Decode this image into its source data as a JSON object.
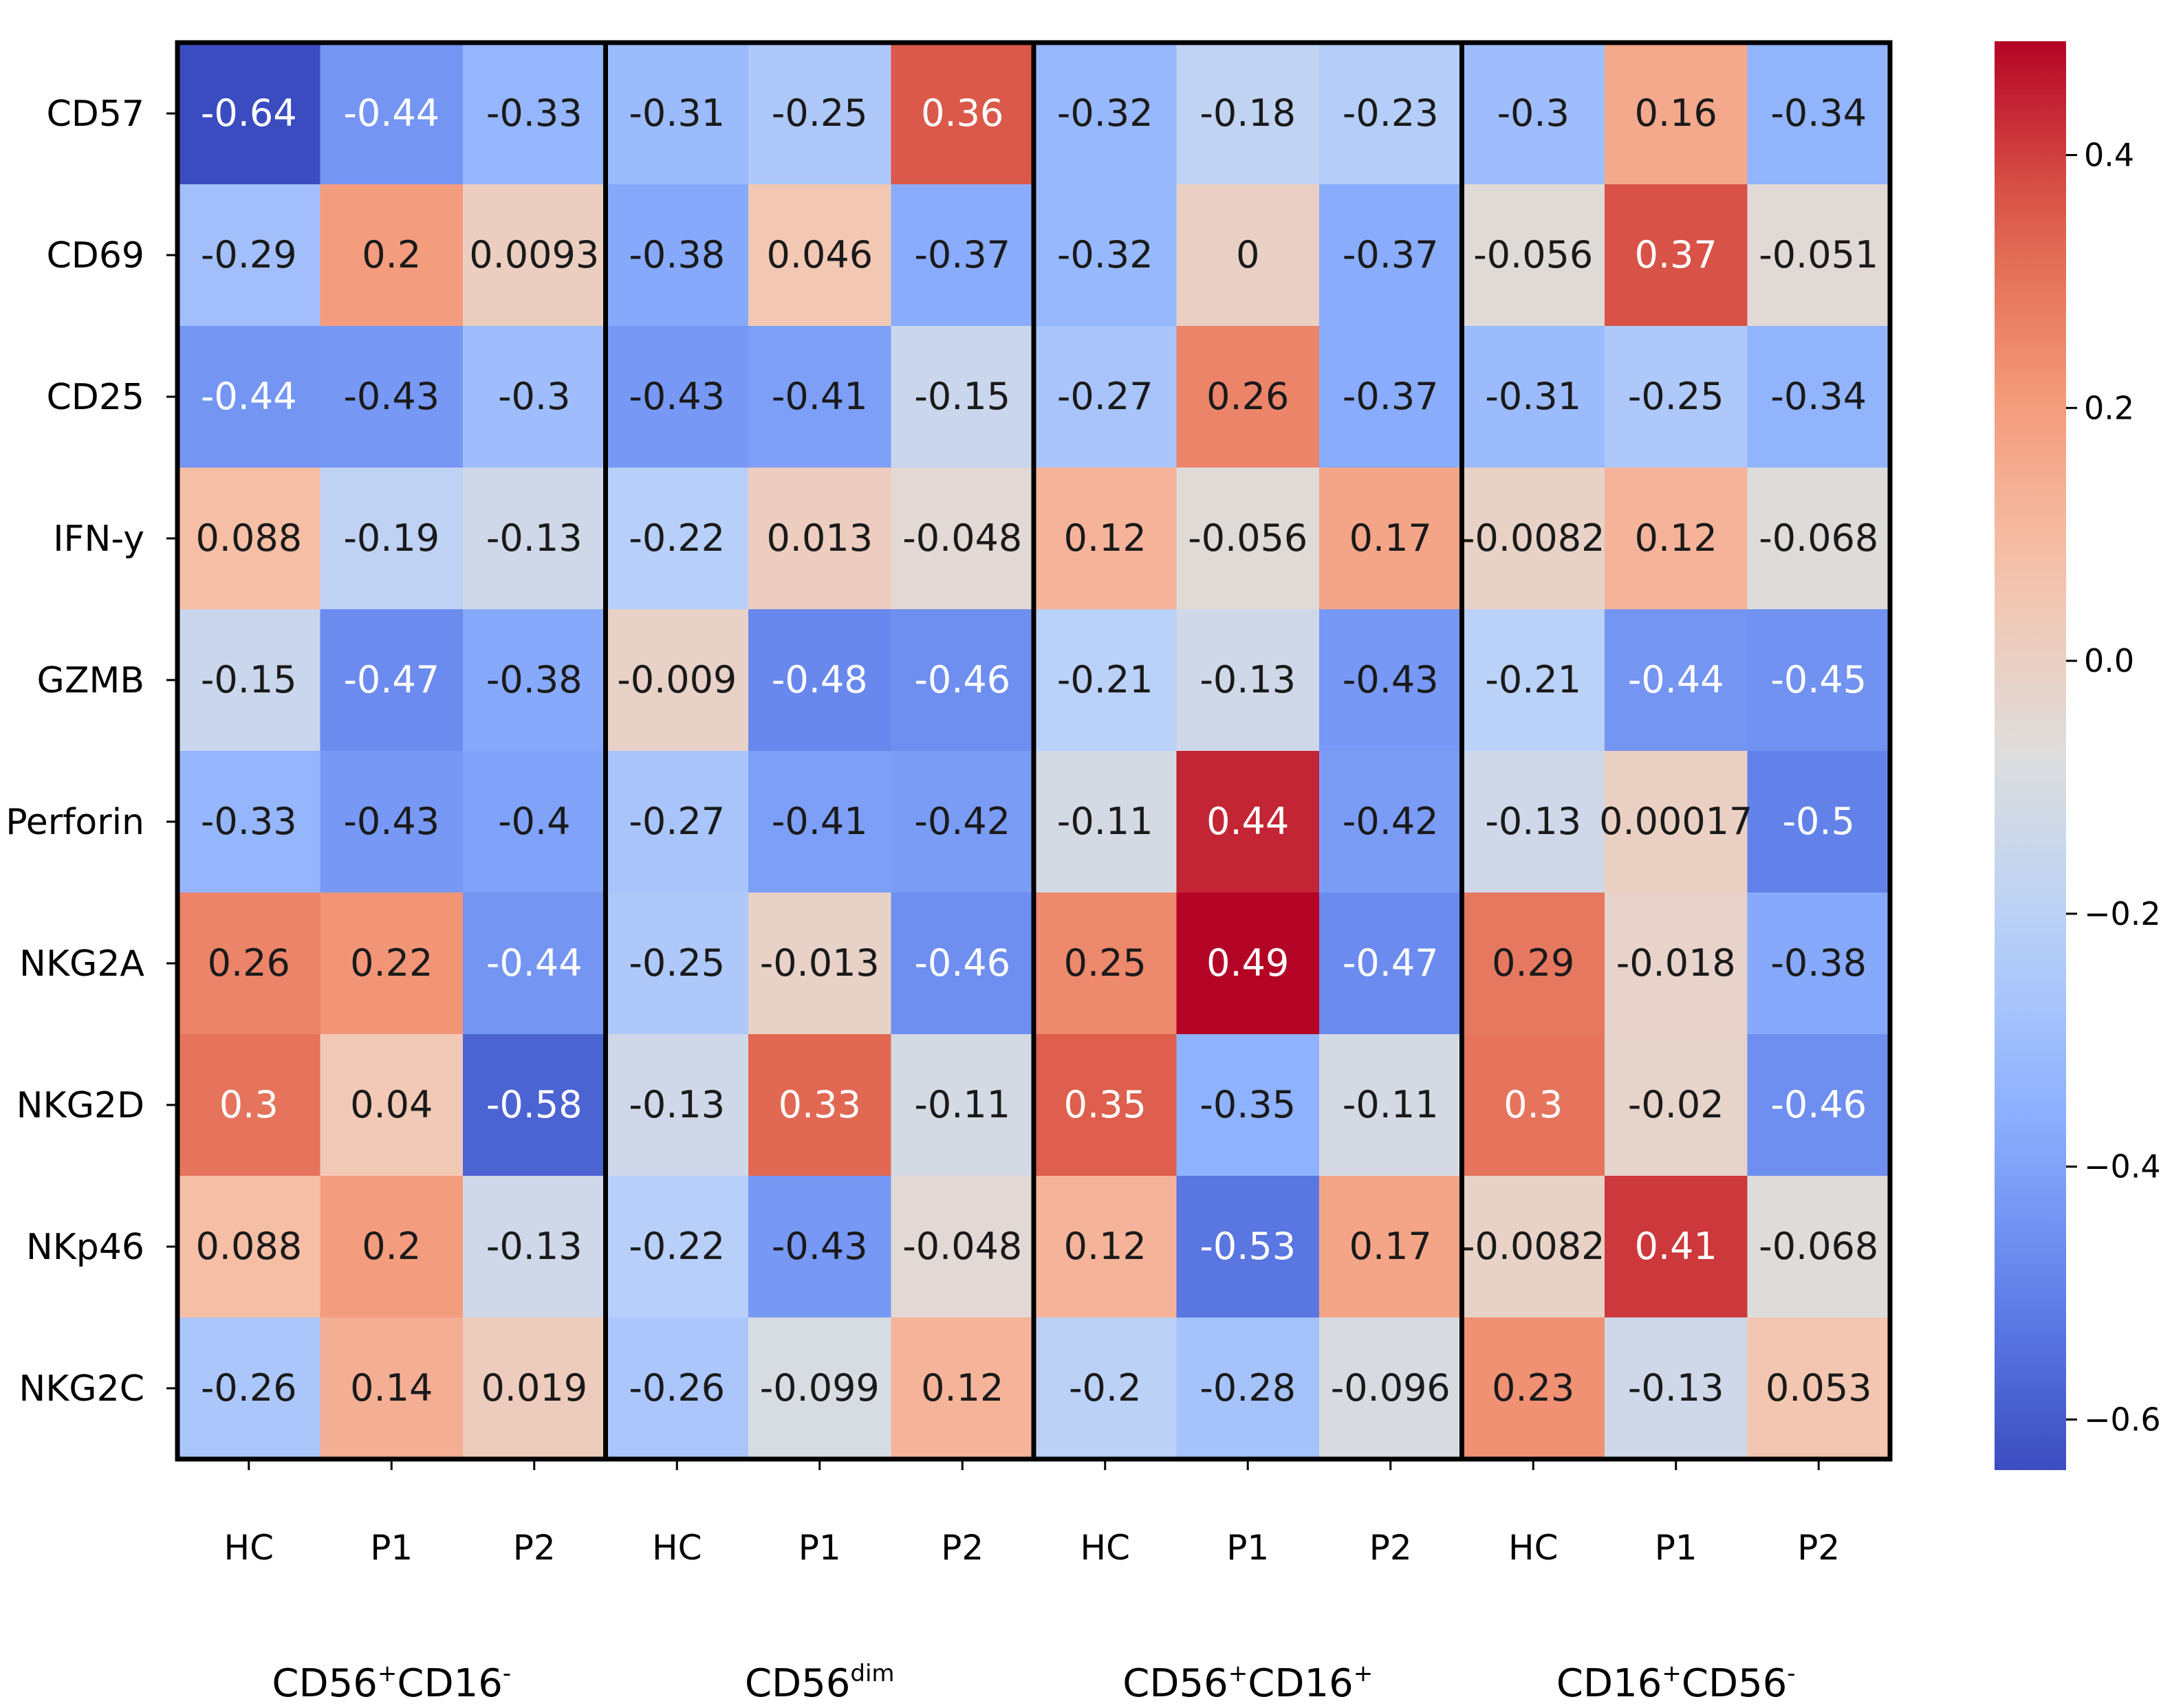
{
  "chart_data": {
    "type": "heatmap",
    "rows": [
      "CD57",
      "CD69",
      "CD25",
      "IFN-y",
      "GZMB",
      "Perforin",
      "NKG2A",
      "NKG2D",
      "NKp46",
      "NKG2C"
    ],
    "columns": [
      "HC",
      "P1",
      "P2",
      "HC",
      "P1",
      "P2",
      "HC",
      "P1",
      "P2",
      "HC",
      "P1",
      "P2"
    ],
    "groups": [
      {
        "base": "CD56",
        "sup1": "+",
        "mid": "CD16",
        "sup2": "-"
      },
      {
        "base": "CD56",
        "sup1": "dim",
        "mid": "",
        "sup2": ""
      },
      {
        "base": "CD56",
        "sup1": "+",
        "mid": "CD16",
        "sup2": "+"
      },
      {
        "base": "CD16",
        "sup1": "+",
        "mid": "CD56",
        "sup2": "-"
      }
    ],
    "values": [
      [
        -0.64,
        -0.44,
        -0.33,
        -0.31,
        -0.25,
        0.36,
        -0.32,
        -0.18,
        -0.23,
        -0.3,
        0.16,
        -0.34
      ],
      [
        -0.29,
        0.2,
        0.0093,
        -0.38,
        0.046,
        -0.37,
        -0.32,
        0,
        -0.37,
        -0.056,
        0.37,
        -0.051
      ],
      [
        -0.44,
        -0.43,
        -0.3,
        -0.43,
        -0.41,
        -0.15,
        -0.27,
        0.26,
        -0.37,
        -0.31,
        -0.25,
        -0.34
      ],
      [
        0.088,
        -0.19,
        -0.13,
        -0.22,
        0.013,
        -0.048,
        0.12,
        -0.056,
        0.17,
        -0.0082,
        0.12,
        -0.068
      ],
      [
        -0.15,
        -0.47,
        -0.38,
        -0.009,
        -0.48,
        -0.46,
        -0.21,
        -0.13,
        -0.43,
        -0.21,
        -0.44,
        -0.45
      ],
      [
        -0.33,
        -0.43,
        -0.4,
        -0.27,
        -0.41,
        -0.42,
        -0.11,
        0.44,
        -0.42,
        -0.13,
        0.00017,
        -0.5
      ],
      [
        0.26,
        0.22,
        -0.44,
        -0.25,
        -0.013,
        -0.46,
        0.25,
        0.49,
        -0.47,
        0.29,
        -0.018,
        -0.38
      ],
      [
        0.3,
        0.04,
        -0.58,
        -0.13,
        0.33,
        -0.11,
        0.35,
        -0.35,
        -0.11,
        0.3,
        -0.02,
        -0.46
      ],
      [
        0.088,
        0.2,
        -0.13,
        -0.22,
        -0.43,
        -0.048,
        0.12,
        -0.53,
        0.17,
        -0.0082,
        0.41,
        -0.068
      ],
      [
        -0.26,
        0.14,
        0.019,
        -0.26,
        -0.099,
        0.12,
        -0.2,
        -0.28,
        -0.096,
        0.23,
        -0.13,
        0.053
      ]
    ],
    "cell_labels": [
      [
        "-0.64",
        "-0.44",
        "-0.33",
        "-0.31",
        "-0.25",
        "0.36",
        "-0.32",
        "-0.18",
        "-0.23",
        "-0.3",
        "0.16",
        "-0.34"
      ],
      [
        "-0.29",
        "0.2",
        "0.0093",
        "-0.38",
        "0.046",
        "-0.37",
        "-0.32",
        "0",
        "-0.37",
        "-0.056",
        "0.37",
        "-0.051"
      ],
      [
        "-0.44",
        "-0.43",
        "-0.3",
        "-0.43",
        "-0.41",
        "-0.15",
        "-0.27",
        "0.26",
        "-0.37",
        "-0.31",
        "-0.25",
        "-0.34"
      ],
      [
        "0.088",
        "-0.19",
        "-0.13",
        "-0.22",
        "0.013",
        "-0.048",
        "0.12",
        "-0.056",
        "0.17",
        "-0.0082",
        "0.12",
        "-0.068"
      ],
      [
        "-0.15",
        "-0.47",
        "-0.38",
        "-0.009",
        "-0.48",
        "-0.46",
        "-0.21",
        "-0.13",
        "-0.43",
        "-0.21",
        "-0.44",
        "-0.45"
      ],
      [
        "-0.33",
        "-0.43",
        "-0.4",
        "-0.27",
        "-0.41",
        "-0.42",
        "-0.11",
        "0.44",
        "-0.42",
        "-0.13",
        "0.00017",
        "-0.5"
      ],
      [
        "0.26",
        "0.22",
        "-0.44",
        "-0.25",
        "-0.013",
        "-0.46",
        "0.25",
        "0.49",
        "-0.47",
        "0.29",
        "-0.018",
        "-0.38"
      ],
      [
        "0.3",
        "0.04",
        "-0.58",
        "-0.13",
        "0.33",
        "-0.11",
        "0.35",
        "-0.35",
        "-0.11",
        "0.3",
        "-0.02",
        "-0.46"
      ],
      [
        "0.088",
        "0.2",
        "-0.13",
        "-0.22",
        "-0.43",
        "-0.048",
        "0.12",
        "-0.53",
        "0.17",
        "-0.0082",
        "0.41",
        "-0.068"
      ],
      [
        "-0.26",
        "0.14",
        "0.019",
        "-0.26",
        "-0.099",
        "0.12",
        "-0.2",
        "-0.28",
        "-0.096",
        "0.23",
        "-0.13",
        "0.053"
      ]
    ],
    "colormap": "coolwarm",
    "vmin": -0.64,
    "vmax": 0.49,
    "colorbar_ticks": [
      0.4,
      0.2,
      0.0,
      -0.2,
      -0.4,
      -0.6
    ],
    "colorbar_tick_labels": [
      "0.4",
      "0.2",
      "0.0",
      "−0.2",
      "−0.4",
      "−0.6"
    ],
    "title": "",
    "xlabel": "",
    "ylabel": ""
  }
}
